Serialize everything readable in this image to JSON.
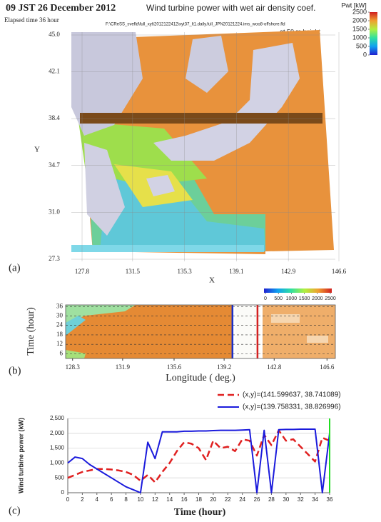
{
  "chart_data": [
    {
      "type": "map",
      "title": "09 JST 26 December 2012",
      "subtitle": "Wind turbine power with wet air density coef.",
      "elapsed": "Elapsed time 36 hour",
      "file": "F:\\CReSS_svefld\\full_xyt\\2012122412\\xyt37_lt1.daily.full_JPN20121224.ims_woo8-offshore.fld",
      "height_note": "at 50 m height",
      "panel": "(a)",
      "xlabel": "X",
      "ylabel": "Y",
      "xlim": [
        127.8,
        146.6
      ],
      "ylim": [
        27.3,
        45.0
      ],
      "xticks": [
        127.8,
        131.5,
        135.3,
        139.1,
        142.9,
        146.6
      ],
      "yticks": [
        {
          "value": 45.0,
          "label": "45.0"
        },
        42.1,
        38.4,
        34.7,
        {
          "value": 31.0,
          "label": "31.0"
        },
        27.3
      ],
      "colorbar": {
        "label": "Pwt [kW]",
        "ticks": [
          2500,
          2000,
          1500,
          1000,
          500,
          0
        ]
      }
    },
    {
      "type": "heatmap",
      "panel": "(b)",
      "xlabel": "Longitude ( deg.)",
      "ylabel": "Time (hour)",
      "xlim": [
        127.8,
        147.2
      ],
      "ylim": [
        3,
        37
      ],
      "xticks": [
        128.3,
        131.9,
        135.6,
        139.2,
        142.8,
        146.6
      ],
      "yticks": [
        6,
        12,
        18,
        24,
        30,
        36
      ],
      "colorbar": {
        "ticks": [
          0,
          500,
          1000,
          1500,
          2000,
          2500
        ]
      },
      "markers": [
        {
          "x": 139.8,
          "color": "#1a2fc8"
        },
        {
          "x": 141.6,
          "color": "#d42020"
        }
      ]
    },
    {
      "type": "line",
      "panel": "(c)",
      "xlabel": "Time (hour)",
      "ylabel": "Wind turbine power (kW)",
      "xlim": [
        0,
        36
      ],
      "ylim": [
        0,
        2500
      ],
      "xticks": [
        0,
        2,
        4,
        6,
        8,
        10,
        12,
        14,
        16,
        18,
        20,
        22,
        24,
        26,
        28,
        30,
        32,
        34,
        36
      ],
      "yticks": [
        0,
        500,
        {
          "value": 1000,
          "label": "1,000"
        },
        {
          "value": 1500,
          "label": "1,500"
        },
        {
          "value": 2000,
          "label": "2,000"
        },
        {
          "value": 2500,
          "label": "2,500"
        }
      ],
      "grid": true,
      "x": [
        0,
        1,
        2,
        3,
        4,
        5,
        6,
        7,
        8,
        9,
        10,
        11,
        12,
        13,
        14,
        15,
        16,
        17,
        18,
        19,
        20,
        21,
        22,
        23,
        24,
        25,
        26,
        27,
        28,
        29,
        30,
        31,
        32,
        33,
        34,
        35,
        36
      ],
      "series": [
        {
          "name": "(x,y)=(141.599637, 38.741089)",
          "color": "#e02020",
          "dash": true,
          "values": [
            500,
            600,
            700,
            750,
            800,
            800,
            780,
            750,
            700,
            600,
            400,
            600,
            350,
            700,
            1000,
            1400,
            1700,
            1650,
            1500,
            1100,
            1750,
            1500,
            1550,
            1400,
            1800,
            1750,
            1250,
            1950,
            1600,
            2100,
            1750,
            1800,
            1550,
            1300,
            1050,
            1850,
            1750
          ]
        },
        {
          "name": "(x,y)=(139.758331, 38.826996)",
          "color": "#1a1adc",
          "dash": false,
          "values": [
            1000,
            1200,
            1150,
            950,
            800,
            650,
            500,
            350,
            200,
            100,
            0,
            1700,
            1150,
            2050,
            2050,
            2050,
            2070,
            2070,
            2080,
            2080,
            2090,
            2100,
            2100,
            2100,
            2110,
            2120,
            0,
            2100,
            0,
            2120,
            2130,
            2130,
            2140,
            2140,
            2140,
            0,
            2000
          ]
        }
      ],
      "now": {
        "x": 36,
        "color": "#22dd22"
      }
    }
  ]
}
